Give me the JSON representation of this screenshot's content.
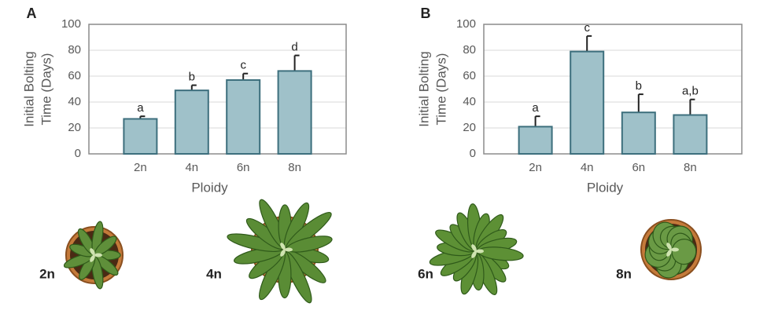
{
  "chart_data": [
    {
      "type": "bar",
      "panel": "A",
      "ylabel": [
        "Initial Bolting",
        "Time (Days)"
      ],
      "xlabel": "Ploidy",
      "categories": [
        "2n",
        "4n",
        "6n",
        "8n"
      ],
      "values": [
        27,
        49,
        57,
        64
      ],
      "errors": [
        2,
        4,
        5,
        12
      ],
      "letters": [
        "a",
        "b",
        "c",
        "d"
      ],
      "color": "#9fc1c9",
      "edge": "#3d6f7d",
      "ylim": [
        0,
        100
      ],
      "yticks": [
        0,
        20,
        40,
        60,
        80,
        100
      ],
      "grid": true
    },
    {
      "type": "bar",
      "panel": "B",
      "ylabel": [
        "Initial Bolting",
        "Time (Days)"
      ],
      "xlabel": "Ploidy",
      "categories": [
        "2n",
        "4n",
        "6n",
        "8n"
      ],
      "values": [
        21,
        79,
        32,
        30
      ],
      "errors": [
        8,
        12,
        14,
        12
      ],
      "letters": [
        "a",
        "c",
        "b",
        "a,b"
      ],
      "color": "#9fc1c9",
      "edge": "#3d6f7d",
      "ylim": [
        0,
        100
      ],
      "yticks": [
        0,
        20,
        40,
        60,
        80,
        100
      ],
      "grid": true
    }
  ],
  "plants": [
    {
      "label": "2n"
    },
    {
      "label": "4n"
    },
    {
      "label": "6n"
    },
    {
      "label": "8n"
    }
  ]
}
